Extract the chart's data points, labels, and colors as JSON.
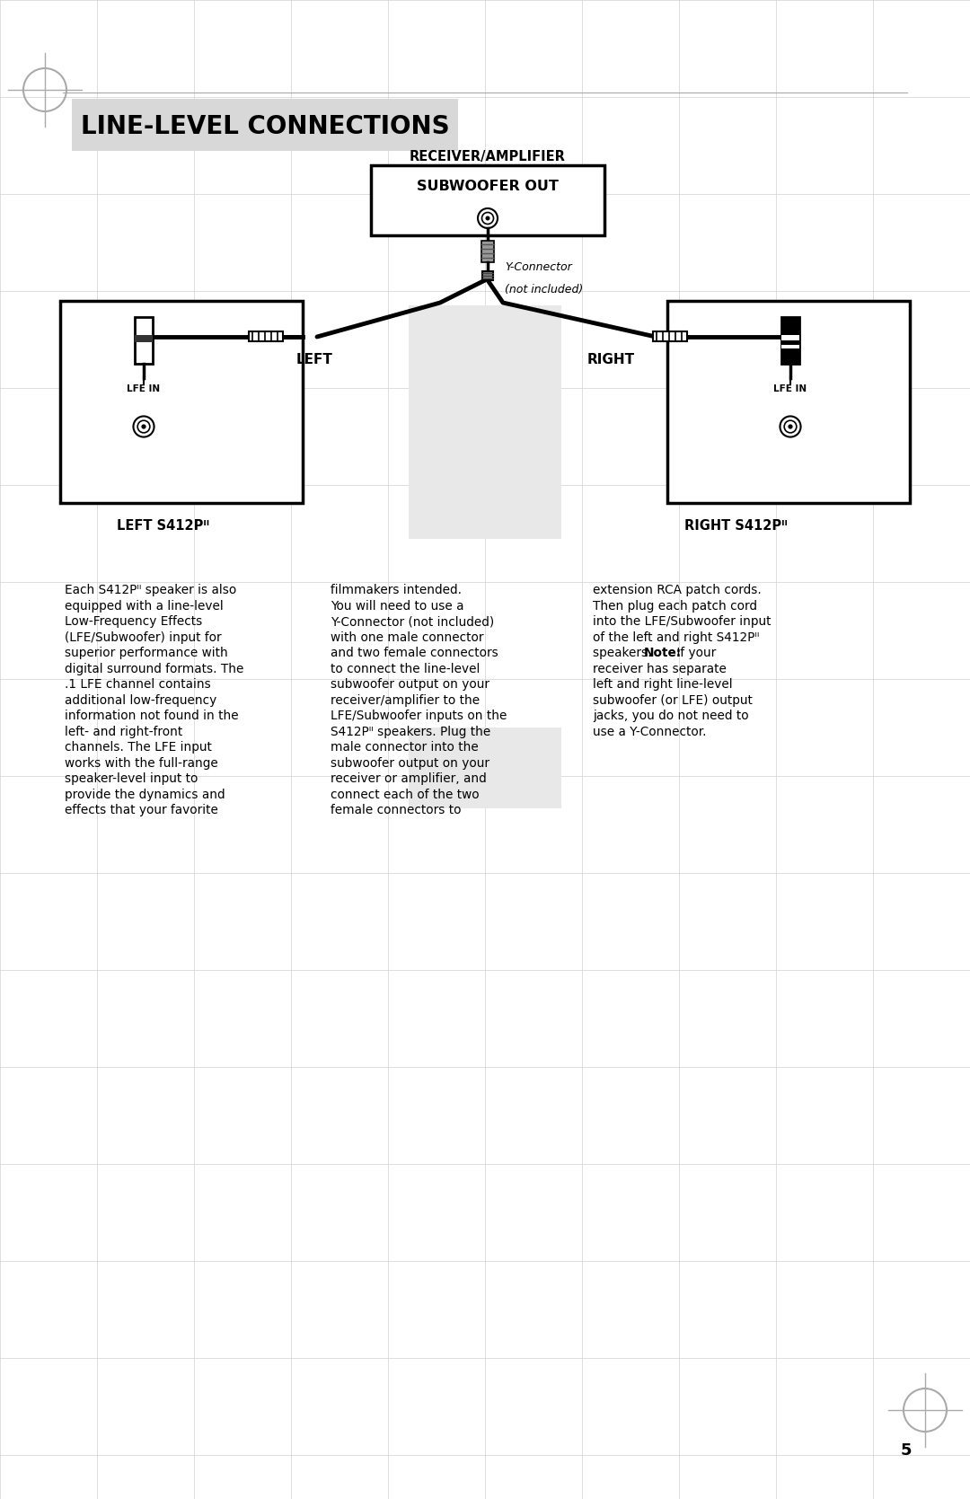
{
  "title": "LINE-LEVEL CONNECTIONS",
  "receiver_label": "RECEIVER/AMPLIFIER",
  "subwoofer_label": "SUBWOOFER OUT",
  "y_connector_line1": "Y-Connector",
  "y_connector_line2": "(not included)",
  "left_label": "LEFT",
  "right_label": "RIGHT",
  "lfe_in_label": "LFE IN",
  "page_number": "5",
  "bg_color": "#ffffff",
  "grid_color": "#d0d0d0",
  "title_bg_color": "#d8d8d8",
  "p1_lines": [
    "Each S412Pᴵᴵ speaker is also",
    "equipped with a line-level",
    "Low-Frequency Effects",
    "(LFE/Subwoofer) input for",
    "superior performance with",
    "digital surround formats. The",
    ".1 LFE channel contains",
    "additional low-frequency",
    "information not found in the",
    "left- and right-front",
    "channels. The LFE input",
    "works with the full-range",
    "speaker-level input to",
    "provide the dynamics and",
    "effects that your favorite"
  ],
  "p2_lines": [
    "filmmakers intended.",
    "You will need to use a",
    "Y-Connector (not included)",
    "with one male connector",
    "and two female connectors",
    "to connect the line-level",
    "subwoofer output on your",
    "receiver/amplifier to the",
    "LFE/Subwoofer inputs on the",
    "S412Pᴵᴵ speakers. Plug the",
    "male connector into the",
    "subwoofer output on your",
    "receiver or amplifier, and",
    "connect each of the two",
    "female connectors to"
  ],
  "p3_lines": [
    "extension RCA patch cords.",
    "Then plug each patch cord",
    "into the LFE/Subwoofer input",
    "of the left and right S412Pᴵᴵ",
    "speakers. |Note:| If your",
    "receiver has separate",
    "left and right line-level",
    "subwoofer (or LFE) output",
    "jacks, you do not need to",
    "use a Y-Connector."
  ]
}
